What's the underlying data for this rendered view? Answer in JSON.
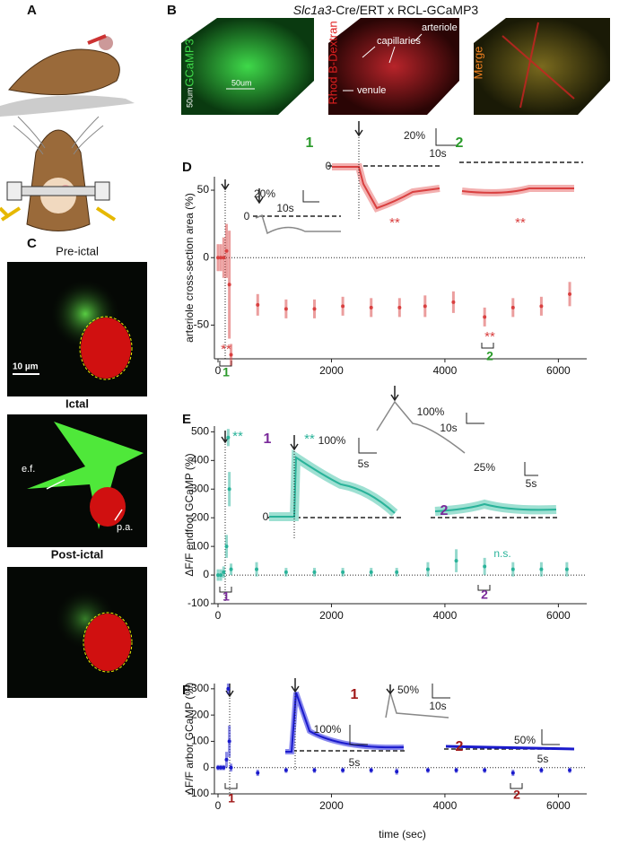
{
  "panels": {
    "labels": [
      "A",
      "B",
      "C",
      "D",
      "E",
      "F"
    ]
  },
  "panel_b": {
    "title_italic": "Slc1a3",
    "title_rest": "-Cre/ERT x RCL-GCaMP3",
    "images": [
      "GCaMP3",
      "Rhod B-Dextran",
      "Merge"
    ],
    "scale_labels": [
      "50um",
      "50um"
    ],
    "annotations": [
      "capillaries",
      "arteriole",
      "venule"
    ]
  },
  "panel_c": {
    "images": [
      "Pre-ictal",
      "Ictal",
      "Post-ictal"
    ],
    "scale_label": "10 µm",
    "annotations": [
      "e.f.",
      "p.a."
    ]
  },
  "chart_data": [
    {
      "type": "scatter",
      "ylabel": "arteriole cross-section area (%)",
      "xlim": [
        0,
        6500
      ],
      "xticks": [
        0,
        2000,
        4000,
        6000
      ],
      "ylim": [
        -75,
        60
      ],
      "yticks": [
        -50,
        0,
        50
      ],
      "zero_line": true,
      "series": [
        {
          "color": "#d94040",
          "x": [
            0,
            50,
            100,
            150,
            200,
            230,
            700,
            1200,
            1700,
            2200,
            2700,
            3200,
            3650,
            4150,
            4700,
            5200,
            5700,
            6200
          ],
          "values": [
            0,
            0,
            0,
            5,
            -20,
            -72,
            -35,
            -38,
            -38,
            -36,
            -37,
            -37,
            -36,
            -33,
            -44,
            -37,
            -36,
            -27
          ],
          "errors": [
            10,
            10,
            15,
            20,
            40,
            8,
            8,
            7,
            7,
            7,
            7,
            7,
            8,
            8,
            7,
            7,
            7,
            9
          ]
        }
      ],
      "annotations": [
        "1",
        "2",
        "20%",
        "10s",
        "0",
        "**",
        "**",
        "20%",
        "10s",
        "0",
        "**",
        "1",
        "**",
        "2"
      ]
    },
    {
      "type": "scatter",
      "ylabel": "ΔF/F endfoot GCaMP (%)",
      "xlim": [
        0,
        6500
      ],
      "xticks": [
        0,
        2000,
        4000,
        6000
      ],
      "ylim": [
        -100,
        520
      ],
      "yticks": [
        -100,
        0,
        100,
        200,
        300,
        400,
        500
      ],
      "zero_line": true,
      "series": [
        {
          "color": "#2ab39a",
          "x": [
            0,
            50,
            100,
            150,
            180,
            200,
            230,
            680,
            1200,
            1700,
            2200,
            2700,
            3150,
            3700,
            4200,
            4700,
            5200,
            5700,
            6150
          ],
          "values": [
            0,
            0,
            10,
            100,
            480,
            300,
            20,
            20,
            10,
            10,
            10,
            10,
            10,
            20,
            50,
            30,
            20,
            20,
            20
          ],
          "errors": [
            20,
            20,
            20,
            40,
            30,
            60,
            20,
            25,
            15,
            15,
            15,
            15,
            15,
            25,
            40,
            30,
            25,
            25,
            25
          ]
        }
      ],
      "annotations": [
        "**",
        "1",
        "**",
        "100%",
        "5s",
        "0",
        "100%",
        "10s",
        "25%",
        "5s",
        "2",
        "n.s.",
        "1",
        "2"
      ]
    },
    {
      "type": "scatter",
      "ylabel": "ΔF/F arbor GCaMP (%)",
      "xlabel": "time (sec)",
      "xlim": [
        0,
        6500
      ],
      "xticks": [
        0,
        2000,
        4000,
        6000
      ],
      "ylim": [
        -100,
        320
      ],
      "yticks": [
        -100,
        0,
        100,
        200,
        300
      ],
      "zero_line": true,
      "series": [
        {
          "color": "#1a1acc",
          "x": [
            0,
            50,
            100,
            150,
            180,
            200,
            230,
            700,
            1200,
            1700,
            2200,
            2700,
            3150,
            3700,
            4200,
            4700,
            5200,
            5700,
            6200
          ],
          "values": [
            0,
            0,
            0,
            30,
            300,
            100,
            0,
            -20,
            -10,
            -10,
            -10,
            -10,
            -15,
            -10,
            -10,
            -10,
            -20,
            -10,
            -10
          ],
          "errors": [
            10,
            10,
            10,
            30,
            20,
            60,
            15,
            12,
            10,
            10,
            10,
            10,
            12,
            10,
            10,
            10,
            12,
            10,
            10
          ]
        }
      ],
      "annotations": [
        "1",
        "100%",
        "5s",
        "50%",
        "10s",
        "50%",
        "5s",
        "2",
        "1",
        "2"
      ]
    }
  ]
}
